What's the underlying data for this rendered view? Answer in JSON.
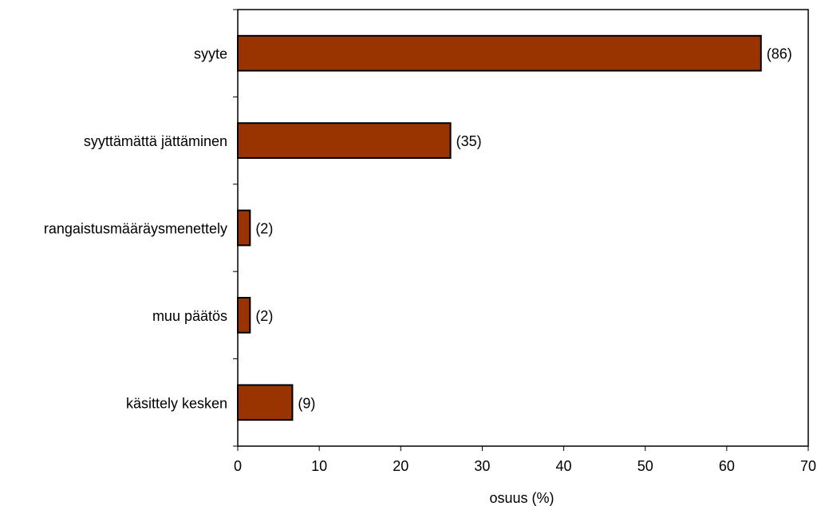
{
  "chart_data": {
    "type": "bar",
    "orientation": "horizontal",
    "categories": [
      "syyte",
      "syyttämättä jättäminen",
      "rangaistusmääräysmenettely",
      "muu päätös",
      "käsittely kesken"
    ],
    "values": [
      64.2,
      26.1,
      1.5,
      1.5,
      6.7
    ],
    "data_labels": [
      "(86)",
      "(35)",
      "(2)",
      "(2)",
      "(9)"
    ],
    "xlabel": "osuus (%)",
    "ylabel": "",
    "title": "",
    "xlim": [
      0,
      70
    ],
    "xticks": [
      "0",
      "10",
      "20",
      "30",
      "40",
      "50",
      "60",
      "70"
    ],
    "grid": false,
    "bar_color": "#993300"
  }
}
